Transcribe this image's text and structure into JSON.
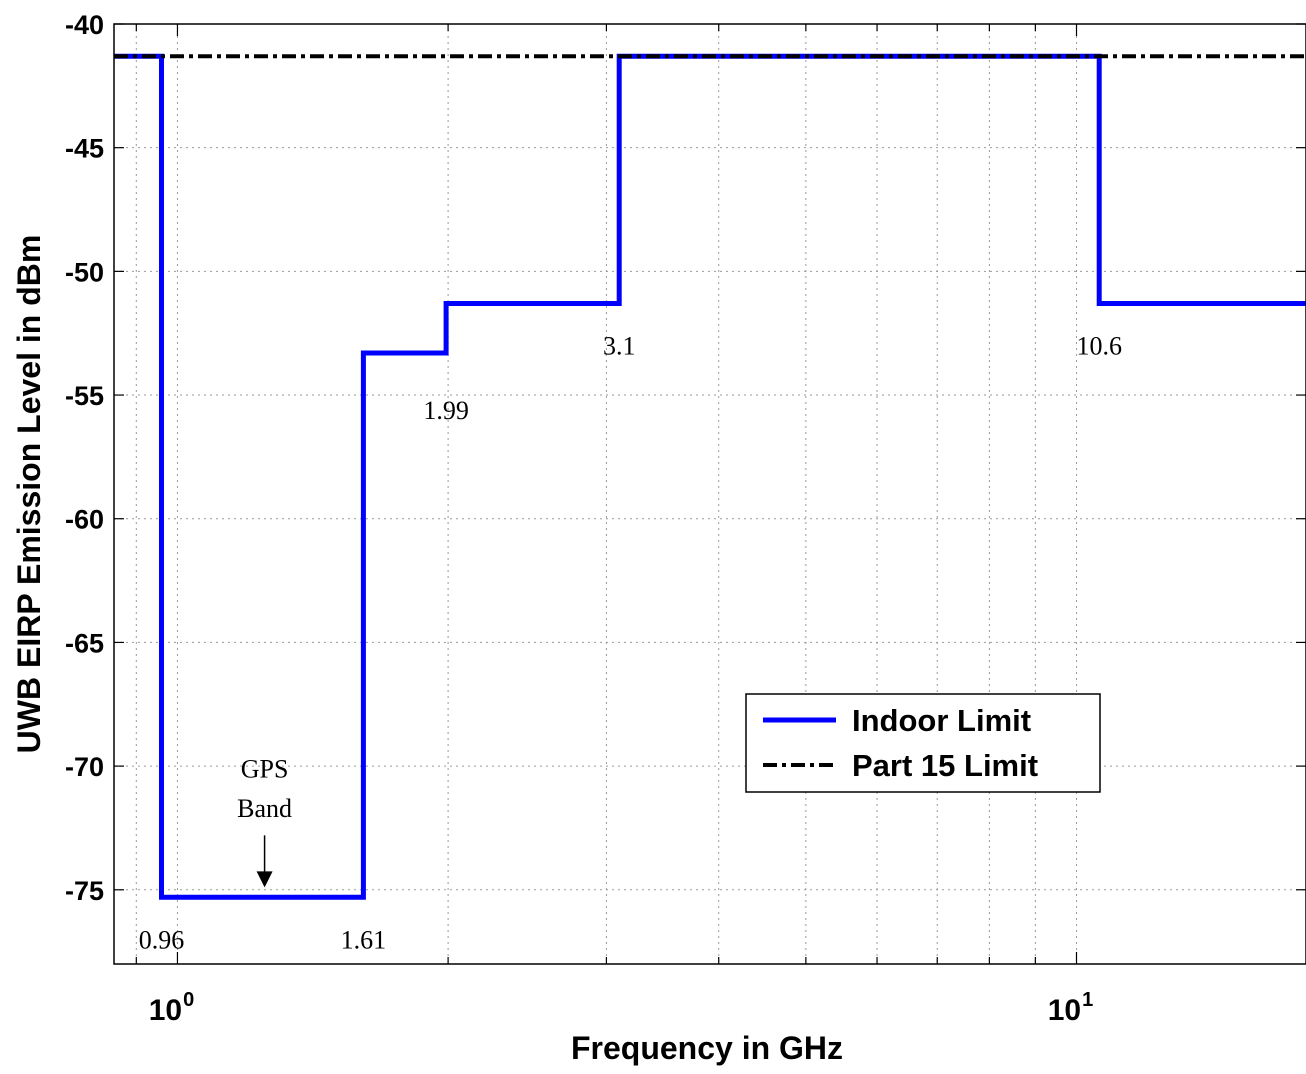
{
  "chart_data": {
    "type": "line",
    "xscale": "log",
    "xlabel": "Frequency in GHz",
    "ylabel": "UWB EIRP Emission Level in dBm",
    "xlim": [
      0.85,
      18
    ],
    "ylim": [
      -78,
      -40
    ],
    "yticks": [
      -40,
      -45,
      -50,
      -55,
      -60,
      -65,
      -70,
      -75
    ],
    "ytick_labels": [
      "-40",
      "-45",
      "-50",
      "-55",
      "-60",
      "-65",
      "-70",
      "-75"
    ],
    "xticks": [
      {
        "base": "10",
        "exp": "0",
        "value": 1
      },
      {
        "base": "10",
        "exp": "1",
        "value": 10
      }
    ],
    "grid": true,
    "legend_position": "lower-right",
    "series": [
      {
        "name": "Indoor Limit",
        "color": "#0000ff",
        "style": "solid",
        "x": [
          0.85,
          0.96,
          0.96,
          1.61,
          1.61,
          1.99,
          1.99,
          3.1,
          3.1,
          10.6,
          10.6,
          18
        ],
        "y": [
          -41.3,
          -41.3,
          -75.3,
          -75.3,
          -53.3,
          -53.3,
          -51.3,
          -51.3,
          -41.3,
          -41.3,
          -51.3,
          -51.3
        ]
      },
      {
        "name": "Part 15 Limit",
        "color": "#000000",
        "style": "dash-dot",
        "x": [
          0.85,
          18
        ],
        "y": [
          -41.3,
          -41.3
        ]
      }
    ],
    "annotations": [
      {
        "text": "0.96",
        "x": 0.96,
        "y": -77.0
      },
      {
        "text": "1.61",
        "x": 1.61,
        "y": -77.0
      },
      {
        "text": "1.99",
        "x": 1.99,
        "y": -55.6
      },
      {
        "text": "3.1",
        "x": 3.1,
        "y": -53.0
      },
      {
        "text": "10.6",
        "x": 10.6,
        "y": -53.0
      },
      {
        "text": "GPS",
        "x": 1.25,
        "y": -70.1
      },
      {
        "text": "Band",
        "x": 1.25,
        "y": -71.7
      }
    ],
    "arrow": {
      "x": 1.25,
      "y_from": -72.8,
      "y_to": -74.9
    }
  }
}
